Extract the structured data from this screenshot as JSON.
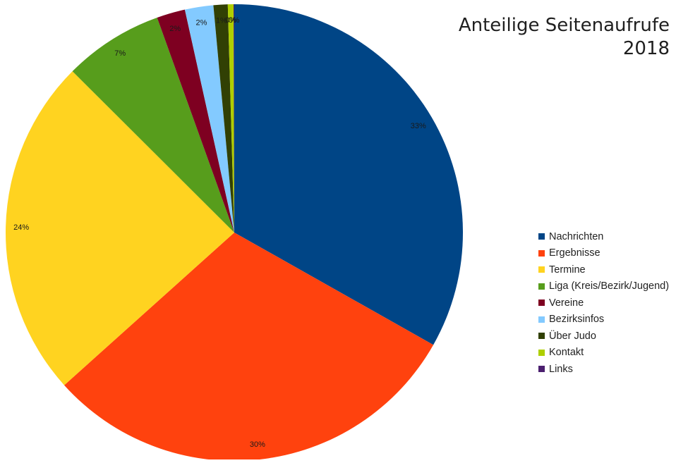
{
  "chart_data": {
    "type": "pie",
    "title_lines": [
      "Anteilige Seitenaufrufe",
      "2018"
    ],
    "slices": [
      {
        "label": "Nachrichten",
        "value": 33,
        "display": "33%",
        "color": "#004586"
      },
      {
        "label": "Ergebnisse",
        "value": 30,
        "display": "30%",
        "color": "#ff420e"
      },
      {
        "label": "Termine",
        "value": 24,
        "display": "24%",
        "color": "#ffd320"
      },
      {
        "label": "Liga (Kreis/Bezirk/Jugend)",
        "value": 7,
        "display": "7%",
        "color": "#579d1c"
      },
      {
        "label": "Vereine",
        "value": 2,
        "display": "2%",
        "color": "#7e0021"
      },
      {
        "label": "Bezirksinfos",
        "value": 2,
        "display": "2%",
        "color": "#83caff"
      },
      {
        "label": "Über Judo",
        "value": 1,
        "display": "1%",
        "color": "#314004"
      },
      {
        "label": "Kontakt",
        "value": 0.4,
        "display": "0%",
        "color": "#aecf00"
      },
      {
        "label": "Links",
        "value": 0.05,
        "display": "0%",
        "color": "#4b1f6f"
      }
    ],
    "legend_position": "right"
  }
}
